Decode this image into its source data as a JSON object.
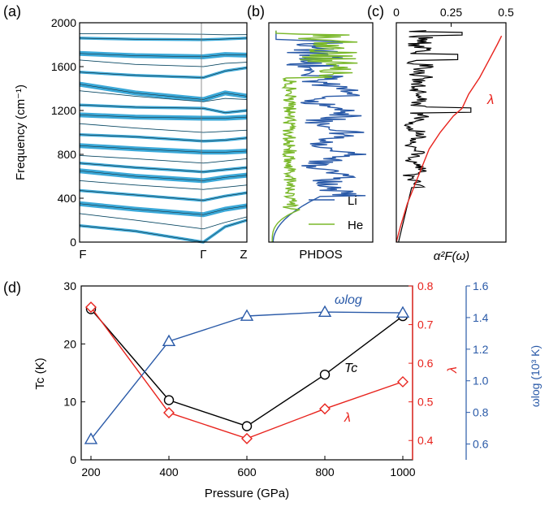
{
  "chart_data": [
    {
      "panel": "(a)",
      "type": "line",
      "subtype": "phonon-dispersion",
      "ylabel": "Frequency (cm⁻¹)",
      "ylim": [
        0,
        2000
      ],
      "yticks": [
        0,
        400,
        800,
        1200,
        1600,
        2000
      ],
      "xticks": [
        "F",
        "Γ",
        "Z"
      ],
      "gamma_fraction": 0.74,
      "branch_color": "#3aa8d8",
      "branches": [
        [
          1900,
          1900,
          1895,
          1890,
          1892
        ],
        [
          1860,
          1850,
          1845,
          1852,
          1860
        ],
        [
          1720,
          1700,
          1690,
          1710,
          1705
        ],
        [
          1660,
          1620,
          1600,
          1630,
          1640
        ],
        [
          1550,
          1520,
          1500,
          1560,
          1590
        ],
        [
          1440,
          1360,
          1300,
          1360,
          1330
        ],
        [
          1380,
          1330,
          1280,
          1310,
          1300
        ],
        [
          1250,
          1230,
          1220,
          1180,
          1200
        ],
        [
          1160,
          1140,
          1130,
          1130,
          1140
        ],
        [
          1080,
          1040,
          1000,
          1010,
          1020
        ],
        [
          980,
          960,
          920,
          930,
          950
        ],
        [
          880,
          850,
          820,
          820,
          830
        ],
        [
          790,
          760,
          720,
          740,
          760
        ],
        [
          720,
          680,
          640,
          660,
          680
        ],
        [
          650,
          600,
          560,
          590,
          610
        ],
        [
          560,
          520,
          480,
          500,
          520
        ],
        [
          470,
          430,
          380,
          420,
          450
        ],
        [
          350,
          300,
          250,
          300,
          330
        ],
        [
          260,
          200,
          120,
          180,
          230
        ],
        [
          150,
          100,
          0,
          140,
          200
        ]
      ]
    },
    {
      "panel": "(b)",
      "type": "line",
      "xlabel": "PHDOS",
      "ylim": [
        0,
        2000
      ],
      "series": [
        {
          "name": "Li",
          "color": "#2a5aa8"
        },
        {
          "name": "He",
          "color": "#7ab82a"
        }
      ],
      "legend": "bottom-right"
    },
    {
      "panel": "(c)",
      "type": "line",
      "xlabel": "α²F(ω)",
      "top_axis_ticks": [
        "0",
        "0.25",
        "0.5"
      ],
      "xlim": [
        0,
        0.5
      ],
      "ylim": [
        0,
        2000
      ],
      "series": [
        {
          "name": "α²F(ω)",
          "color": "#000000"
        },
        {
          "name": "λ",
          "color": "#e8231d",
          "points": [
            [
              0,
              0
            ],
            [
              0.02,
              150
            ],
            [
              0.05,
              350
            ],
            [
              0.1,
              600
            ],
            [
              0.15,
              850
            ],
            [
              0.2,
              1000
            ],
            [
              0.26,
              1150
            ],
            [
              0.3,
              1220
            ],
            [
              0.33,
              1350
            ],
            [
              0.38,
              1500
            ],
            [
              0.42,
              1650
            ],
            [
              0.46,
              1800
            ],
            [
              0.48,
              1880
            ]
          ]
        }
      ],
      "annotation": "λ"
    },
    {
      "panel": "(d)",
      "type": "line",
      "xlabel": "Pressure (GPa)",
      "x": [
        200,
        400,
        600,
        800,
        1000
      ],
      "xlim": [
        175,
        1025
      ],
      "xticks": [
        200,
        400,
        600,
        800,
        1000
      ],
      "axes": {
        "left": {
          "label": "Tc (K)",
          "ylim": [
            0,
            30
          ],
          "ticks": [
            0,
            10,
            20,
            30
          ],
          "color": "#000000"
        },
        "right_inner": {
          "label": "λ",
          "ylim": [
            0.35,
            0.8
          ],
          "ticks": [
            "0.4",
            "0.5",
            "0.6",
            "0.7",
            "0.8"
          ],
          "color": "#e8231d"
        },
        "right_outer": {
          "label": "ωlog (10³ K)",
          "ylim": [
            0.5,
            1.6
          ],
          "ticks": [
            "0.6",
            "0.8",
            "1.0",
            "1.2",
            "1.4",
            "1.6"
          ],
          "color": "#2a5aa8"
        }
      },
      "series": [
        {
          "name": "Tc",
          "axis": "left",
          "marker": "circle",
          "color": "#000000",
          "values": [
            26,
            10.3,
            5.8,
            14.7,
            24.8
          ]
        },
        {
          "name": "λ",
          "axis": "right_inner",
          "marker": "diamond",
          "color": "#e8231d",
          "values": [
            0.745,
            0.472,
            0.405,
            0.482,
            0.552
          ]
        },
        {
          "name": "ωlog",
          "axis": "right_outer",
          "marker": "triangle",
          "color": "#2a5aa8",
          "values": [
            0.63,
            1.25,
            1.41,
            1.435,
            1.43
          ]
        }
      ]
    }
  ],
  "labels": {
    "panel_a": "(a)",
    "panel_b": "(b)",
    "panel_c": "(c)",
    "panel_d": "(d)",
    "freq_axis": "Frequency (cm⁻¹)",
    "phdos_axis": "PHDOS",
    "a2f_axis": "α²F(ω)",
    "lambda_c": "λ",
    "legend_li": "Li",
    "legend_he": "He",
    "tc_axis": "Tc (K)",
    "lambda_axis": "λ",
    "omega_axis": "ωlog (10³ K)",
    "pressure_axis": "Pressure (GPa)",
    "tc_note": "Tc",
    "lambda_note": "λ",
    "omega_note": "ωlog"
  }
}
